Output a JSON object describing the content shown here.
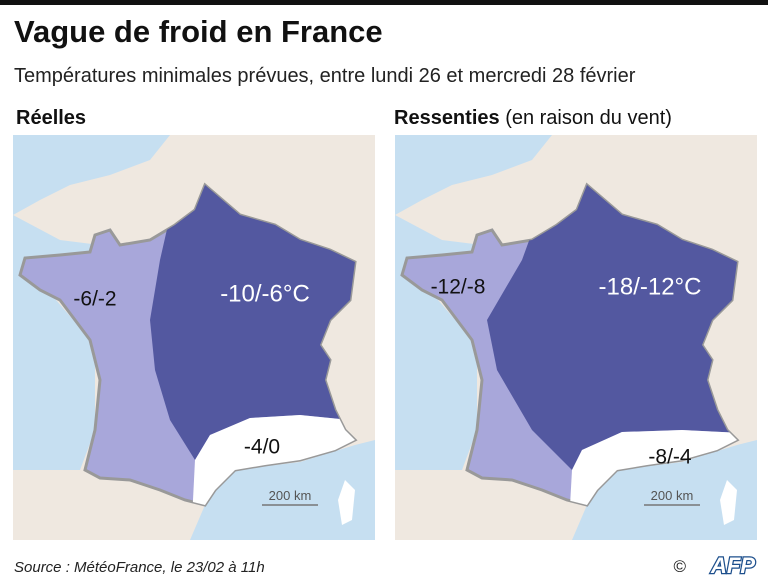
{
  "header": {
    "title": "Vague de froid en France",
    "subtitle": "Températures minimales prévues, entre lundi 26 et mercredi 28 février"
  },
  "panels": [
    {
      "heading": "Réelles",
      "zones": {
        "west": "-6/-2",
        "northeast": "-10/-6°C",
        "southeast": "-4/0"
      },
      "scale": "200 km"
    },
    {
      "heading": "Ressenties",
      "heading_note": "(en raison du vent)",
      "zones": {
        "west": "-12/-8",
        "northeast": "-18/-12°C",
        "southeast": "-8/-4"
      },
      "scale": "200 km"
    }
  ],
  "footer": {
    "source": "Source : MétéoFrance, le 23/02 à 11h",
    "copyright": "©",
    "credit": "AFP"
  }
}
